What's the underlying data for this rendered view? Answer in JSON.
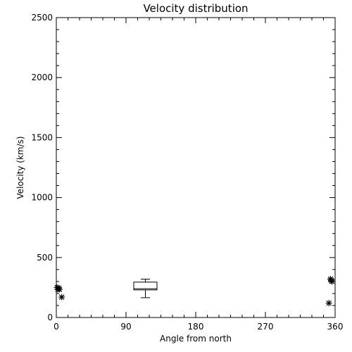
{
  "chart_data": {
    "type": "scatter",
    "title": "Velocity distribution",
    "xlabel": "Angle from north",
    "ylabel": "Velocity (km/s)",
    "xlim": [
      0,
      360
    ],
    "ylim": [
      0,
      2500
    ],
    "xticks": [
      0,
      90,
      180,
      270,
      360
    ],
    "yticks": [
      0,
      500,
      1000,
      1500,
      2000,
      2500
    ],
    "xtick_labels": [
      "0",
      "90",
      "180",
      "270",
      "360"
    ],
    "ytick_labels": [
      "0",
      "500",
      "1000",
      "1500",
      "2000",
      "2500"
    ],
    "grid": false,
    "points": [
      {
        "x": 1,
        "y": 250
      },
      {
        "x": 2,
        "y": 235
      },
      {
        "x": 3,
        "y": 245
      },
      {
        "x": 4,
        "y": 235
      },
      {
        "x": 7,
        "y": 170
      },
      {
        "x": 352,
        "y": 120
      },
      {
        "x": 354,
        "y": 320
      },
      {
        "x": 355,
        "y": 310
      },
      {
        "x": 356,
        "y": 300
      }
    ],
    "boxplot": {
      "x": 115,
      "x_range": [
        100,
        130
      ],
      "whisker_low": 165,
      "q1": 230,
      "median": 240,
      "q3": 295,
      "whisker_high": 320
    }
  }
}
